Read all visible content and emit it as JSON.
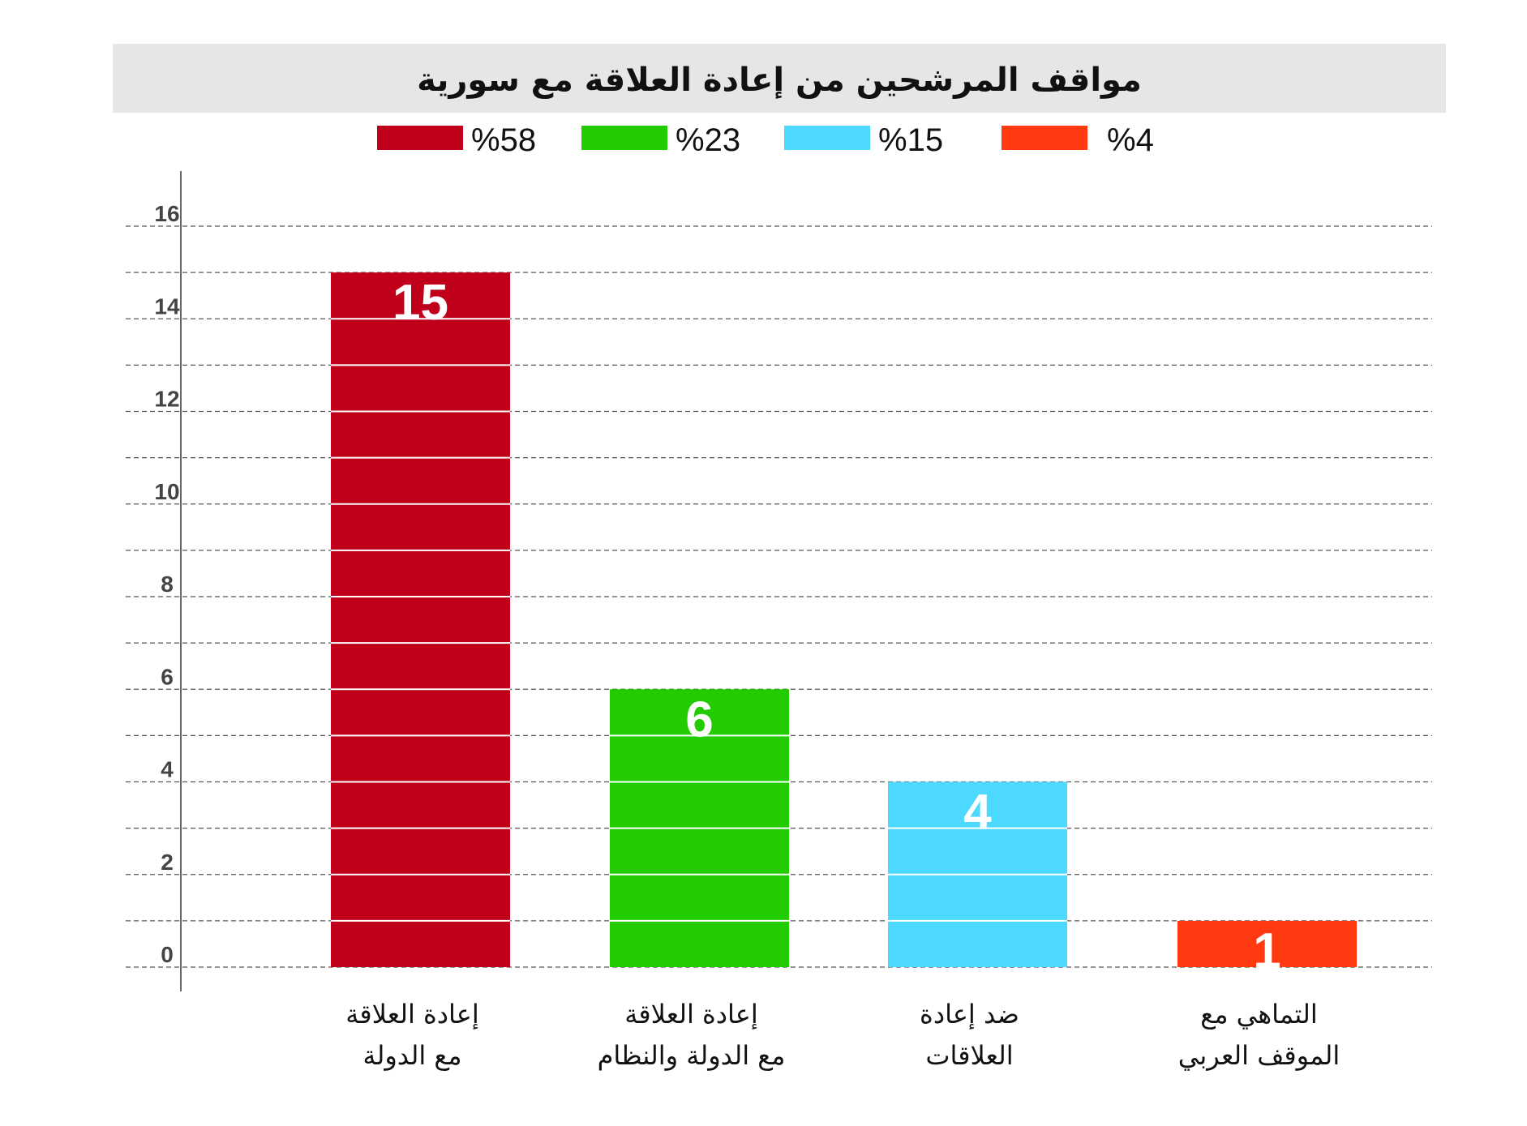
{
  "chart_data": {
    "type": "bar",
    "title": "مواقف المرشحين من إعادة العلاقة مع سورية",
    "categories": [
      {
        "line1": "إعادة العلاقة",
        "line2": "مع الدولة"
      },
      {
        "line1": "إعادة العلاقة",
        "line2": "مع الدولة والنظام"
      },
      {
        "line1": "ضد إعادة",
        "line2": "العلاقات"
      },
      {
        "line1": "التماهي مع",
        "line2": "الموقف العربي"
      }
    ],
    "values": [
      15,
      6,
      4,
      1
    ],
    "value_labels": [
      "15",
      "6",
      "4",
      "1"
    ],
    "colors": [
      "#C0001A",
      "#22CC00",
      "#4DD8FF",
      "#FF3A10"
    ],
    "legend": [
      {
        "label": "%58",
        "color": "#C0001A"
      },
      {
        "label": "%23",
        "color": "#22CC00"
      },
      {
        "label": "%15",
        "color": "#4DD8FF"
      },
      {
        "label": "%4",
        "color": "#FF3A10"
      }
    ],
    "legend_position": "top",
    "yticks": [
      "0",
      "2",
      "4",
      "6",
      "8",
      "10",
      "12",
      "14",
      "16"
    ],
    "ylim": [
      0,
      16
    ],
    "grid": true,
    "grid_step": 1,
    "xlabel": "",
    "ylabel": ""
  }
}
